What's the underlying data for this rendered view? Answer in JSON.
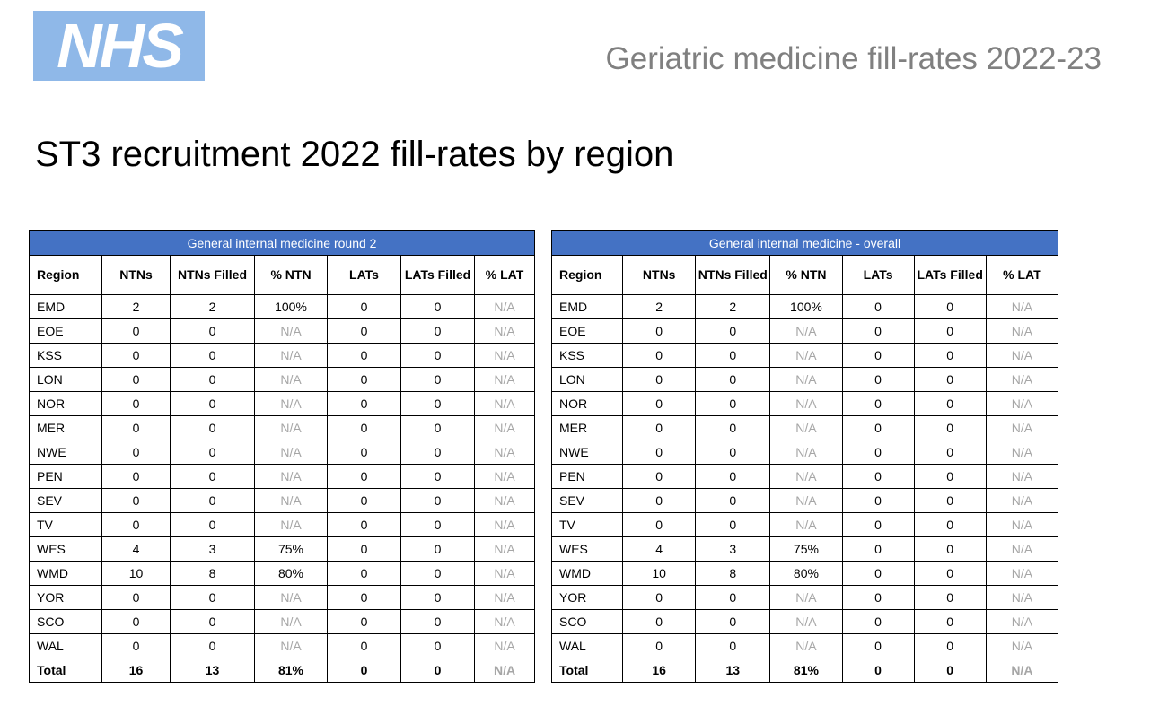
{
  "logo": {
    "text": "NHS"
  },
  "header": {
    "title": "Geriatric medicine fill-rates 2022-23"
  },
  "slide": {
    "title": "ST3 recruitment 2022 fill-rates by region"
  },
  "tables": [
    {
      "title": "General internal medicine round 2",
      "columns": [
        "Region",
        "NTNs",
        "NTNs Filled",
        "% NTN",
        "LATs",
        "LATs Filled",
        "% LAT"
      ],
      "rows": [
        [
          "EMD",
          "2",
          "2",
          "100%",
          "0",
          "0",
          "N/A"
        ],
        [
          "EOE",
          "0",
          "0",
          "N/A",
          "0",
          "0",
          "N/A"
        ],
        [
          "KSS",
          "0",
          "0",
          "N/A",
          "0",
          "0",
          "N/A"
        ],
        [
          "LON",
          "0",
          "0",
          "N/A",
          "0",
          "0",
          "N/A"
        ],
        [
          "NOR",
          "0",
          "0",
          "N/A",
          "0",
          "0",
          "N/A"
        ],
        [
          "MER",
          "0",
          "0",
          "N/A",
          "0",
          "0",
          "N/A"
        ],
        [
          "NWE",
          "0",
          "0",
          "N/A",
          "0",
          "0",
          "N/A"
        ],
        [
          "PEN",
          "0",
          "0",
          "N/A",
          "0",
          "0",
          "N/A"
        ],
        [
          "SEV",
          "0",
          "0",
          "N/A",
          "0",
          "0",
          "N/A"
        ],
        [
          "TV",
          "0",
          "0",
          "N/A",
          "0",
          "0",
          "N/A"
        ],
        [
          "WES",
          "4",
          "3",
          "75%",
          "0",
          "0",
          "N/A"
        ],
        [
          "WMD",
          "10",
          "8",
          "80%",
          "0",
          "0",
          "N/A"
        ],
        [
          "YOR",
          "0",
          "0",
          "N/A",
          "0",
          "0",
          "N/A"
        ],
        [
          "SCO",
          "0",
          "0",
          "N/A",
          "0",
          "0",
          "N/A"
        ],
        [
          "WAL",
          "0",
          "0",
          "N/A",
          "0",
          "0",
          "N/A"
        ]
      ],
      "total": [
        "Total",
        "16",
        "13",
        "81%",
        "0",
        "0",
        "N/A"
      ]
    },
    {
      "title": "General internal medicine - overall",
      "columns": [
        "Region",
        "NTNs",
        "NTNs Filled",
        "% NTN",
        "LATs",
        "LATs Filled",
        "% LAT"
      ],
      "rows": [
        [
          "EMD",
          "2",
          "2",
          "100%",
          "0",
          "0",
          "N/A"
        ],
        [
          "EOE",
          "0",
          "0",
          "N/A",
          "0",
          "0",
          "N/A"
        ],
        [
          "KSS",
          "0",
          "0",
          "N/A",
          "0",
          "0",
          "N/A"
        ],
        [
          "LON",
          "0",
          "0",
          "N/A",
          "0",
          "0",
          "N/A"
        ],
        [
          "NOR",
          "0",
          "0",
          "N/A",
          "0",
          "0",
          "N/A"
        ],
        [
          "MER",
          "0",
          "0",
          "N/A",
          "0",
          "0",
          "N/A"
        ],
        [
          "NWE",
          "0",
          "0",
          "N/A",
          "0",
          "0",
          "N/A"
        ],
        [
          "PEN",
          "0",
          "0",
          "N/A",
          "0",
          "0",
          "N/A"
        ],
        [
          "SEV",
          "0",
          "0",
          "N/A",
          "0",
          "0",
          "N/A"
        ],
        [
          "TV",
          "0",
          "0",
          "N/A",
          "0",
          "0",
          "N/A"
        ],
        [
          "WES",
          "4",
          "3",
          "75%",
          "0",
          "0",
          "N/A"
        ],
        [
          "WMD",
          "10",
          "8",
          "80%",
          "0",
          "0",
          "N/A"
        ],
        [
          "YOR",
          "0",
          "0",
          "N/A",
          "0",
          "0",
          "N/A"
        ],
        [
          "SCO",
          "0",
          "0",
          "N/A",
          "0",
          "0",
          "N/A"
        ],
        [
          "WAL",
          "0",
          "0",
          "N/A",
          "0",
          "0",
          "N/A"
        ]
      ],
      "total": [
        "Total",
        "16",
        "13",
        "81%",
        "0",
        "0",
        "N/A"
      ]
    }
  ],
  "colors": {
    "logo_bg": "#8fb8e8",
    "banner_bg": "#4472c4",
    "na_text": "#a6a6a6",
    "header_title": "#808080"
  }
}
